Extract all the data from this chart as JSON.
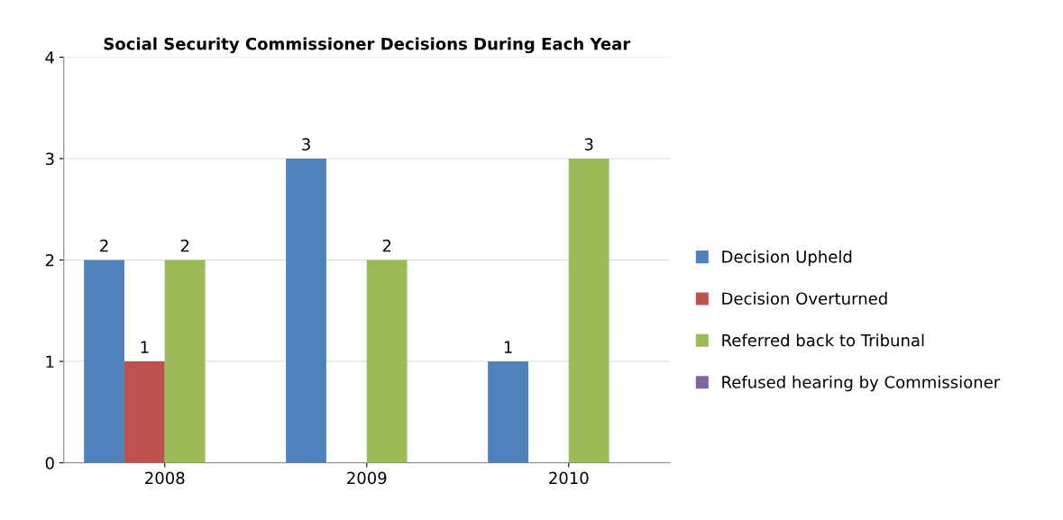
{
  "chart_data": {
    "type": "bar",
    "title": "Social Security Commissioner Decisions During Each Year",
    "categories": [
      "2008",
      "2009",
      "2010"
    ],
    "series": [
      {
        "name": "Decision Upheld",
        "color": "#4f81bd",
        "values": [
          2,
          3,
          1
        ],
        "value_labels": [
          "2",
          "3",
          "1"
        ]
      },
      {
        "name": "Decision Overturned",
        "color": "#c0504d",
        "values": [
          1,
          0,
          0
        ],
        "value_labels": [
          "1",
          null,
          null
        ]
      },
      {
        "name": "Referred back to Tribunal",
        "color": "#9bbb59",
        "values": [
          2,
          2,
          3
        ],
        "value_labels": [
          "2",
          "2",
          "3"
        ]
      },
      {
        "name": "Refused hearing by Commissioner",
        "color": "#8064a2",
        "values": [
          0,
          0,
          0
        ],
        "value_labels": [
          null,
          null,
          null
        ]
      }
    ],
    "ylim": [
      0,
      4
    ],
    "yticks": [
      0,
      1,
      2,
      3,
      4
    ],
    "grid": "y",
    "legend": "right"
  }
}
